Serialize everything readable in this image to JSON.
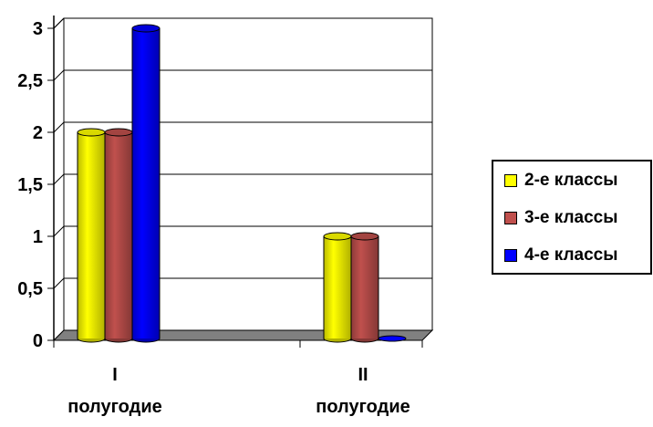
{
  "chart_data": {
    "type": "bar",
    "categories": [
      "I полугодие",
      "II полугодие"
    ],
    "category_lines": [
      [
        "I",
        "полугодие"
      ],
      [
        "II",
        "полугодие"
      ]
    ],
    "series": [
      {
        "name": "2-е классы",
        "values": [
          2,
          1
        ],
        "color": "#ffff00"
      },
      {
        "name": "3-е классы",
        "values": [
          2,
          1
        ],
        "color": "#c0504d"
      },
      {
        "name": "4-е классы",
        "values": [
          3,
          0
        ],
        "color": "#0000ff"
      }
    ],
    "y_ticks": [
      "0",
      "0,5",
      "1",
      "1,5",
      "2",
      "2,5",
      "3"
    ],
    "ylim": [
      0,
      3
    ],
    "grid": true,
    "legend_position": "right",
    "title": "",
    "xlabel": "",
    "ylabel": ""
  }
}
